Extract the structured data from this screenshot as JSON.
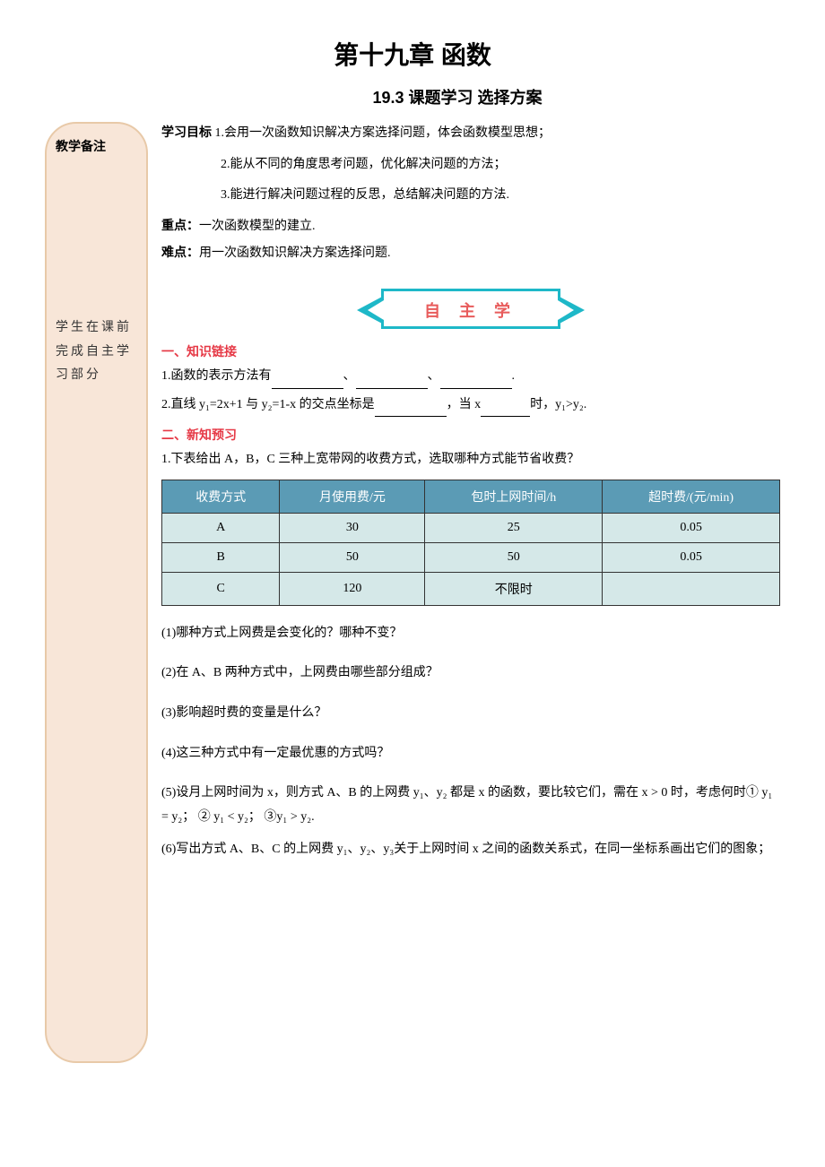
{
  "chapter_title": "第十九章  函数",
  "section_title": "19.3    课题学习    选择方案",
  "sidebar": {
    "title": "教学备注",
    "note": "学生在课前完成自主学习部分"
  },
  "objectives": {
    "label": "学习目标",
    "items": [
      "1.会用一次函数知识解决方案选择问题，体会函数模型思想；",
      "2.能从不同的角度思考问题，优化解决问题的方法；",
      "3.能进行解决问题过程的反思，总结解决问题的方法."
    ]
  },
  "key_point": {
    "label": "重点：",
    "text": "一次函数模型的建立."
  },
  "difficulty": {
    "label": "难点：",
    "text": "用一次函数知识解决方案选择问题."
  },
  "banner_text": "自 主 学",
  "section1": {
    "title": "一、知识链接",
    "q1_prefix": "1.函数的表示方法有",
    "q1_suffix": ".",
    "q2_text": "2.直线 y₁=2x+1 与 y₂=1-x 的交点坐标是",
    "q2_mid": "，当 x",
    "q2_end": "时，y₁>y₂."
  },
  "section2": {
    "title": "二、新知预习",
    "intro": "1.下表给出 A，B，C 三种上宽带网的收费方式，选取哪种方式能节省收费？",
    "table": {
      "headers": [
        "收费方式",
        "月使用费/元",
        "包时上网时间/h",
        "超时费/(元/min)"
      ],
      "rows": [
        [
          "A",
          "30",
          "25",
          "0.05"
        ],
        [
          "B",
          "50",
          "50",
          "0.05"
        ],
        [
          "C",
          "120",
          "不限时",
          ""
        ]
      ],
      "header_bg": "#5b9bb5",
      "header_color": "#ffffff",
      "cell_bg": "#d5e8e8",
      "border_color": "#333333"
    },
    "questions": [
      "(1)哪种方式上网费是会变化的？哪种不变？",
      "(2)在 A、B 两种方式中，上网费由哪些部分组成？",
      "(3)影响超时费的变量是什么？",
      "(4)这三种方式中有一定最优惠的方式吗？",
      "(5)设月上网时间为 x，则方式 A、B 的上网费 y₁、y₂ 都是 x 的函数，要比较它们，需在 x > 0 时，考虑何时① y₁ = y₂；  ② y₁ < y₂；   ③y₁ > y₂.",
      "(6)写出方式 A、B、C 的上网费 y₁、y₂、y₃关于上网时间 x 之间的函数关系式，在同一坐标系画出它们的图象；"
    ]
  },
  "colors": {
    "sidebar_bg": "#f8e6d8",
    "sidebar_border": "#e8c9a8",
    "banner_border": "#1eb8c8",
    "banner_text": "#e85c5c",
    "subsection_title": "#e63946"
  }
}
